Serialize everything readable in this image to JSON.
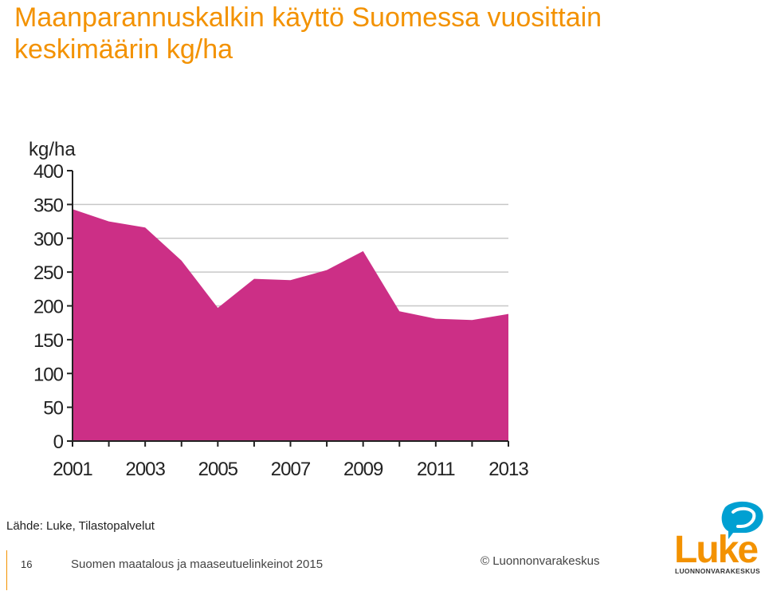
{
  "title": "Maanparannuskalkin käyttö Suomessa vuosittain keskimäärin kg/ha",
  "chart_data": {
    "type": "area",
    "unit_label": "kg/ha",
    "x": [
      2001,
      2002,
      2003,
      2004,
      2005,
      2006,
      2007,
      2008,
      2009,
      2010,
      2011,
      2012,
      2013
    ],
    "values": [
      343,
      325,
      316,
      267,
      197,
      240,
      238,
      253,
      281,
      192,
      181,
      179,
      188
    ],
    "ylim": [
      0,
      400
    ],
    "yticks": [
      0,
      50,
      100,
      150,
      200,
      250,
      300,
      350,
      400
    ],
    "xtick_labels": [
      "2001",
      "2003",
      "2005",
      "2007",
      "2009",
      "2011",
      "2013"
    ],
    "grid": true,
    "fill_color": "#cc2f86",
    "grid_color": "#c8c8c8"
  },
  "source": "Lähde: Luke, Tilastopalvelut",
  "footer": {
    "page_number": "16",
    "publication": "Suomen maatalous ja maaseutuelinkeinot 2015",
    "copyright": "© Luonnonvarakeskus"
  },
  "logo": {
    "word": "Luke",
    "subtitle": "LUONNONVARAKESKUS",
    "color": "#f39200",
    "bubble_color": "#00a0d2"
  }
}
